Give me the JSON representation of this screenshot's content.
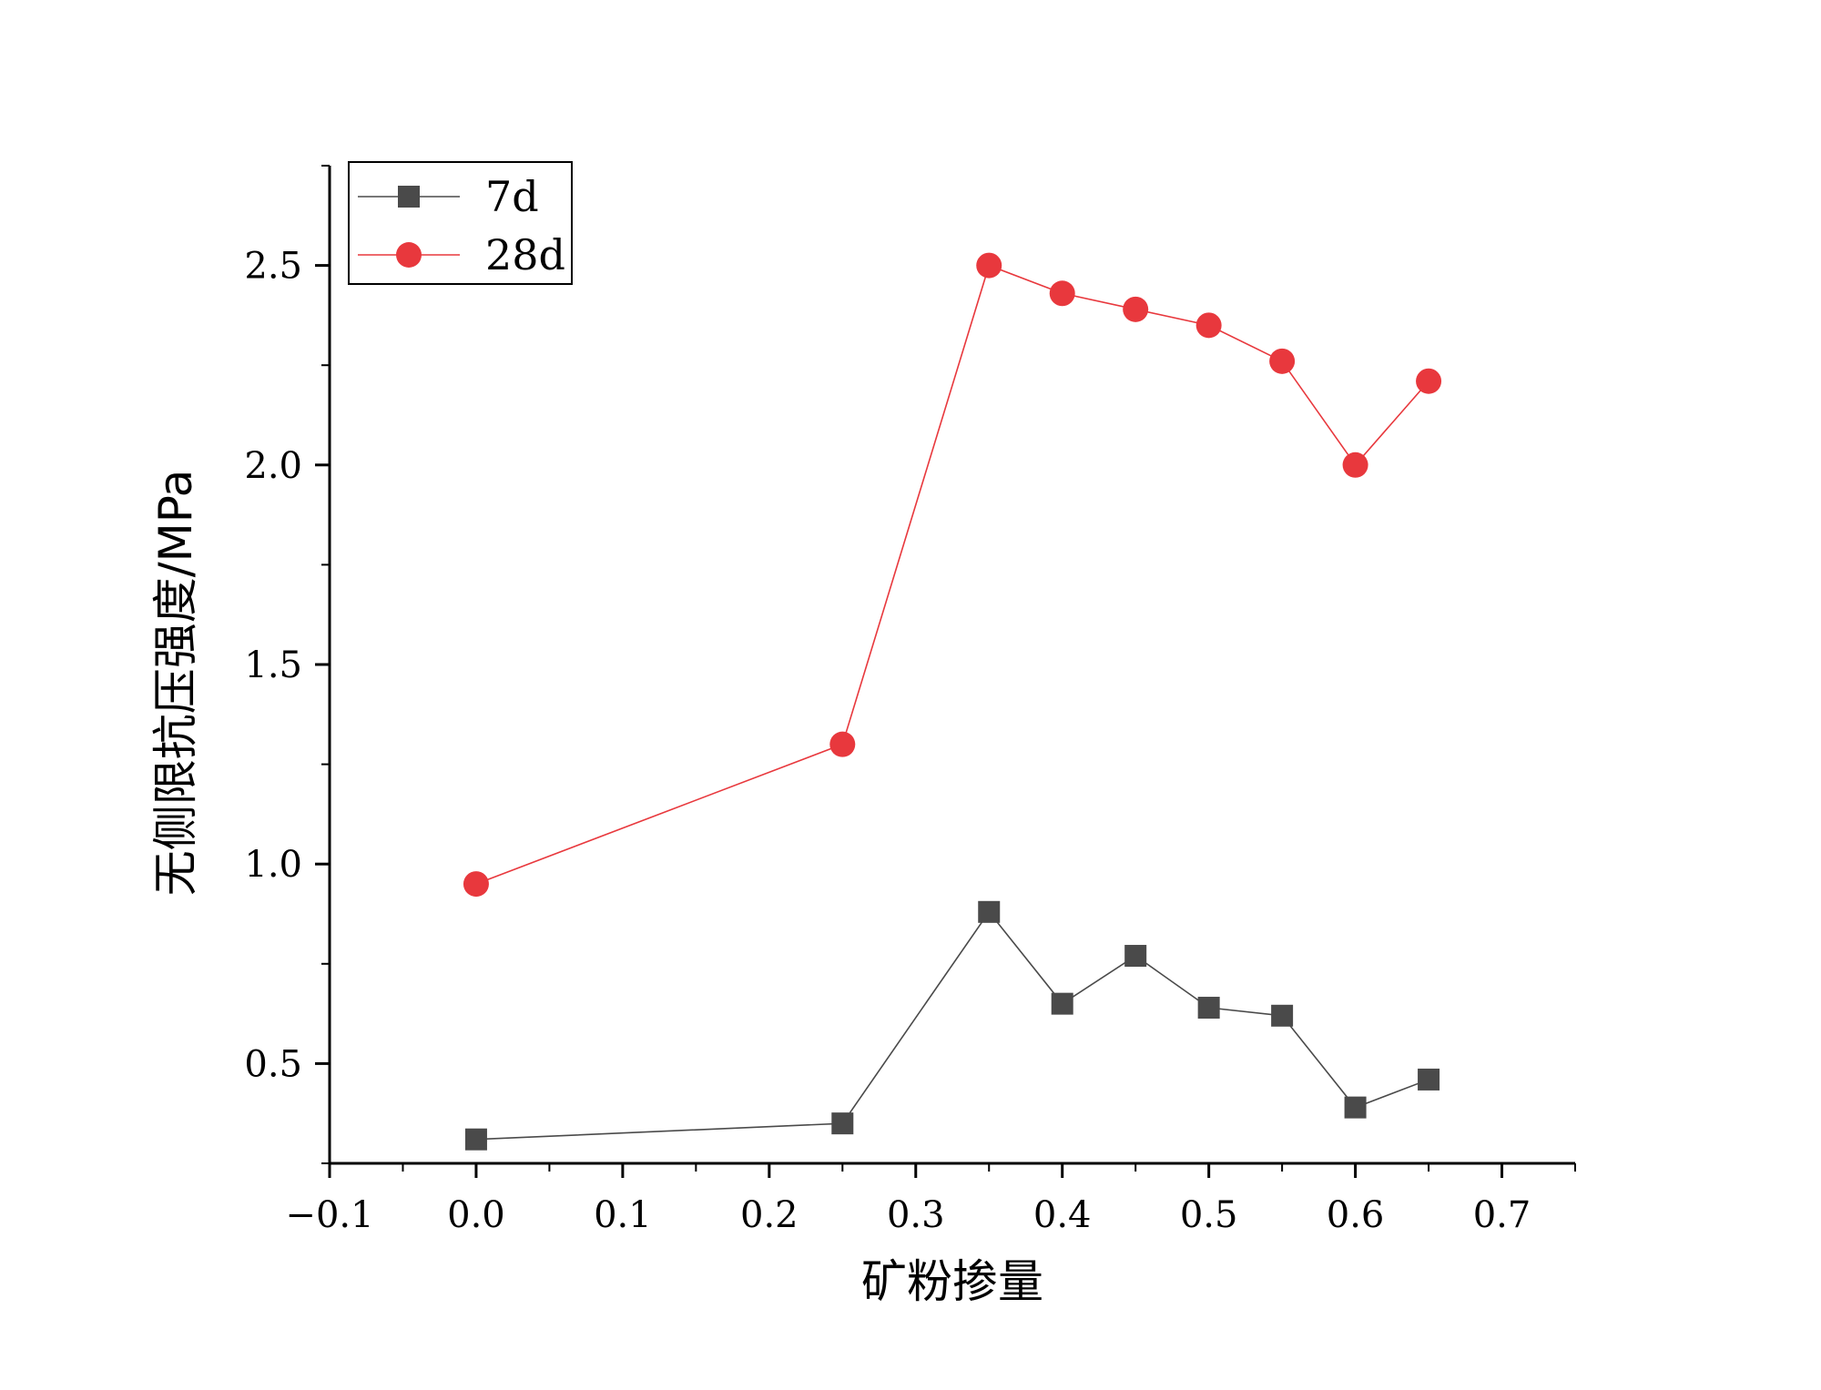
{
  "chart_data": {
    "type": "line",
    "xlabel": "矿粉掺量",
    "ylabel": "无侧限抗压强度/MPa",
    "xlim": [
      -0.1,
      0.75
    ],
    "ylim": [
      0.25,
      2.75
    ],
    "x_ticks": [
      "-0.1",
      "0.0",
      "0.1",
      "0.2",
      "0.3",
      "0.4",
      "0.5",
      "0.6",
      "0.7"
    ],
    "y_ticks": [
      "0.5",
      "1.0",
      "1.5",
      "2.0",
      "2.5"
    ],
    "legend_position": "top-left",
    "grid": false,
    "x": [
      0.0,
      0.25,
      0.35,
      0.4,
      0.45,
      0.5,
      0.55,
      0.6,
      0.65
    ],
    "series": [
      {
        "name": "7d",
        "color": "#4a4a4a",
        "marker": "square",
        "values": [
          0.31,
          0.35,
          0.88,
          0.65,
          0.77,
          0.64,
          0.62,
          0.39,
          0.46
        ]
      },
      {
        "name": "28d",
        "color": "#e8383d",
        "marker": "circle",
        "values": [
          0.95,
          1.3,
          2.5,
          2.43,
          2.39,
          2.35,
          2.26,
          2.0,
          2.21
        ]
      }
    ]
  }
}
